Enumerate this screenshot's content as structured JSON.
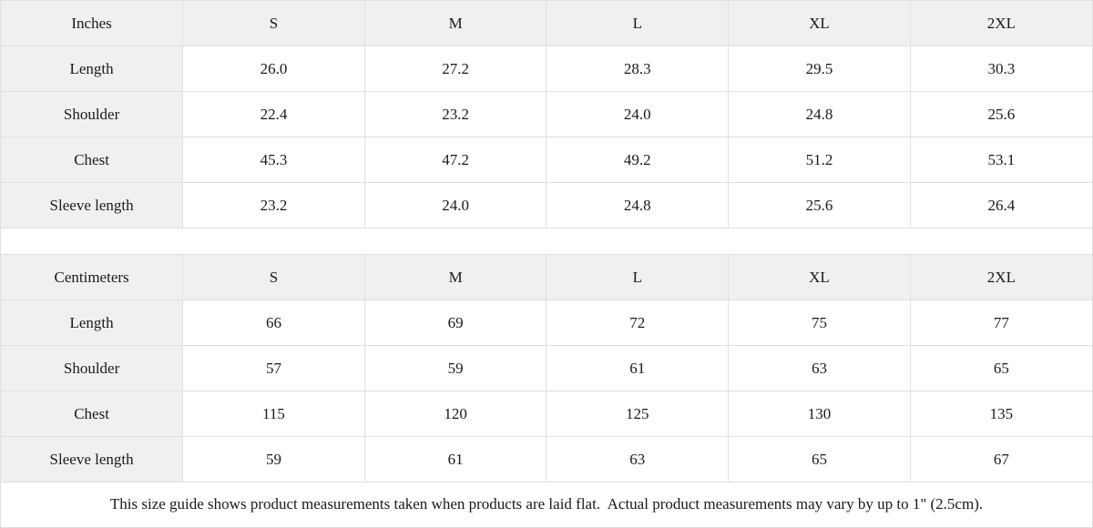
{
  "inches": {
    "unit_label": "Inches",
    "sizes": [
      "S",
      "M",
      "L",
      "XL",
      "2XL"
    ],
    "rows": [
      {
        "label": "Length",
        "values": [
          "26.0",
          "27.2",
          "28.3",
          "29.5",
          "30.3"
        ]
      },
      {
        "label": "Shoulder",
        "values": [
          "22.4",
          "23.2",
          "24.0",
          "24.8",
          "25.6"
        ]
      },
      {
        "label": "Chest",
        "values": [
          "45.3",
          "47.2",
          "49.2",
          "51.2",
          "53.1"
        ]
      },
      {
        "label": "Sleeve length",
        "values": [
          "23.2",
          "24.0",
          "24.8",
          "25.6",
          "26.4"
        ]
      }
    ]
  },
  "centimeters": {
    "unit_label": "Centimeters",
    "sizes": [
      "S",
      "M",
      "L",
      "XL",
      "2XL"
    ],
    "rows": [
      {
        "label": "Length",
        "values": [
          "66",
          "69",
          "72",
          "75",
          "77"
        ]
      },
      {
        "label": "Shoulder",
        "values": [
          "57",
          "59",
          "61",
          "63",
          "65"
        ]
      },
      {
        "label": "Chest",
        "values": [
          "115",
          "120",
          "125",
          "130",
          "135"
        ]
      },
      {
        "label": "Sleeve length",
        "values": [
          "59",
          "61",
          "63",
          "65",
          "67"
        ]
      }
    ]
  },
  "footer": {
    "note": "This size guide shows product measurements taken when products are laid flat.  Actual product measurements may vary by up to 1\" (2.5cm)."
  },
  "colors": {
    "header_bg": "#f0f0f0",
    "cell_bg": "#ffffff",
    "border": "#e0e0e0",
    "text": "#1a1a1a"
  }
}
